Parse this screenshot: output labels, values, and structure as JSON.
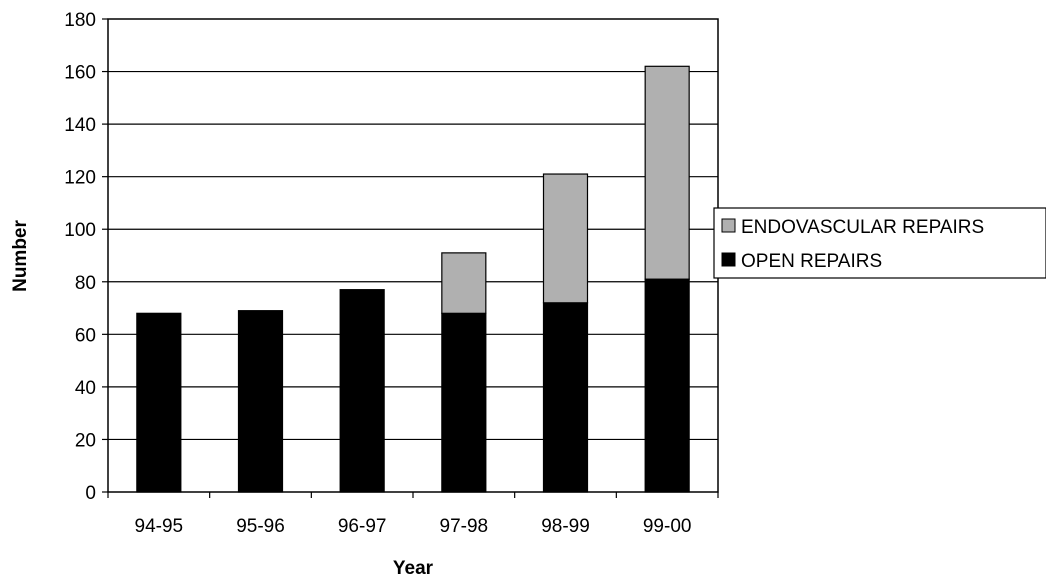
{
  "chart_data": {
    "type": "bar",
    "stacked": true,
    "title": "",
    "xlabel": "Year",
    "ylabel": "Number",
    "categories": [
      "94-95",
      "95-96",
      "96-97",
      "97-98",
      "98-99",
      "99-00"
    ],
    "series": [
      {
        "name": "OPEN REPAIRS",
        "values": [
          68,
          69,
          77,
          68,
          72,
          81
        ],
        "color": "#000000"
      },
      {
        "name": "ENDOVASCULAR REPAIRS",
        "values": [
          0,
          0,
          0,
          23,
          49,
          81
        ],
        "color": "#b0b0b0"
      }
    ],
    "ylim": [
      0,
      180
    ],
    "yticks": [
      "0",
      "20",
      "40",
      "60",
      "80",
      "100",
      "120",
      "140",
      "160",
      "180"
    ],
    "grid": true,
    "legend": {
      "placement": "right",
      "entries": [
        "ENDOVASCULAR REPAIRS",
        "OPEN REPAIRS"
      ]
    }
  }
}
